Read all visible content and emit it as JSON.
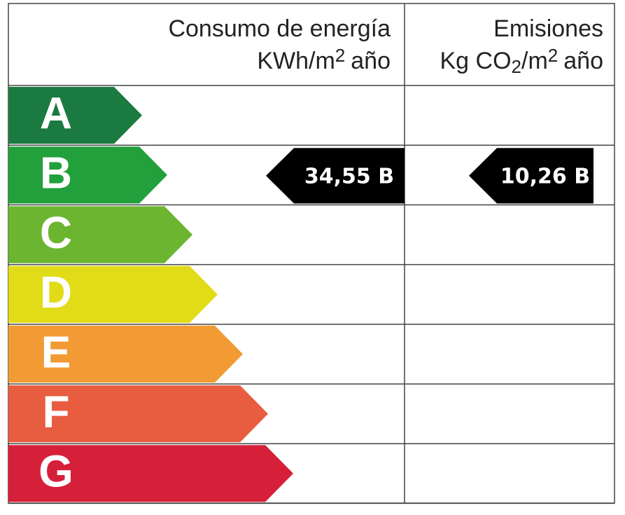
{
  "header": {
    "consumption": {
      "title": "Consumo de energía",
      "unit": [
        "KWh/m",
        "2",
        "año"
      ]
    },
    "emissions": {
      "title": "Emisiones",
      "unit": [
        "Kg CO",
        "2",
        "/m",
        "2",
        "año"
      ]
    }
  },
  "rows": [
    {
      "letter": "A",
      "color": "#1b7a3f"
    },
    {
      "letter": "B",
      "color": "#22a03c",
      "consumption": "34,55 B",
      "emissions": "10,26 B"
    },
    {
      "letter": "C",
      "color": "#6cb530"
    },
    {
      "letter": "D",
      "color": "#e2dc18"
    },
    {
      "letter": "E",
      "color": "#f29a34"
    },
    {
      "letter": "F",
      "color": "#e85c40"
    },
    {
      "letter": "G",
      "color": "#d6203a"
    }
  ]
}
